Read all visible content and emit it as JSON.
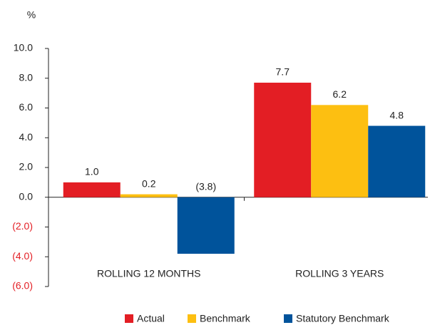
{
  "chart_data": {
    "type": "bar",
    "ylabel": "%",
    "categories": [
      "ROLLING 12 MONTHS",
      "ROLLING 3 YEARS"
    ],
    "series": [
      {
        "name": "Actual",
        "color": "#e31e24",
        "values": [
          1.0,
          7.7
        ],
        "value_labels": [
          "1.0",
          "7.7"
        ]
      },
      {
        "name": "Benchmark",
        "color": "#fdbf11",
        "values": [
          0.2,
          6.2
        ],
        "value_labels": [
          "0.2",
          "6.2"
        ]
      },
      {
        "name": "Statutory Benchmark",
        "color": "#00539b",
        "values": [
          -3.8,
          4.8
        ],
        "value_labels": [
          "(3.8)",
          "4.8"
        ]
      }
    ],
    "ylim": [
      -6,
      10
    ],
    "yticks": [
      {
        "value": -6,
        "label": "(6.0)"
      },
      {
        "value": -4,
        "label": "(4.0)"
      },
      {
        "value": -2,
        "label": "(2.0)"
      },
      {
        "value": 0,
        "label": "0.0"
      },
      {
        "value": 2,
        "label": "2.0"
      },
      {
        "value": 4,
        "label": "4.0"
      },
      {
        "value": 6,
        "label": "6.0"
      },
      {
        "value": 8,
        "label": "8.0"
      },
      {
        "value": 10,
        "label": "10.0"
      }
    ],
    "negative_tick_color": "#e31e24",
    "grid": false,
    "legend": "bottom"
  }
}
